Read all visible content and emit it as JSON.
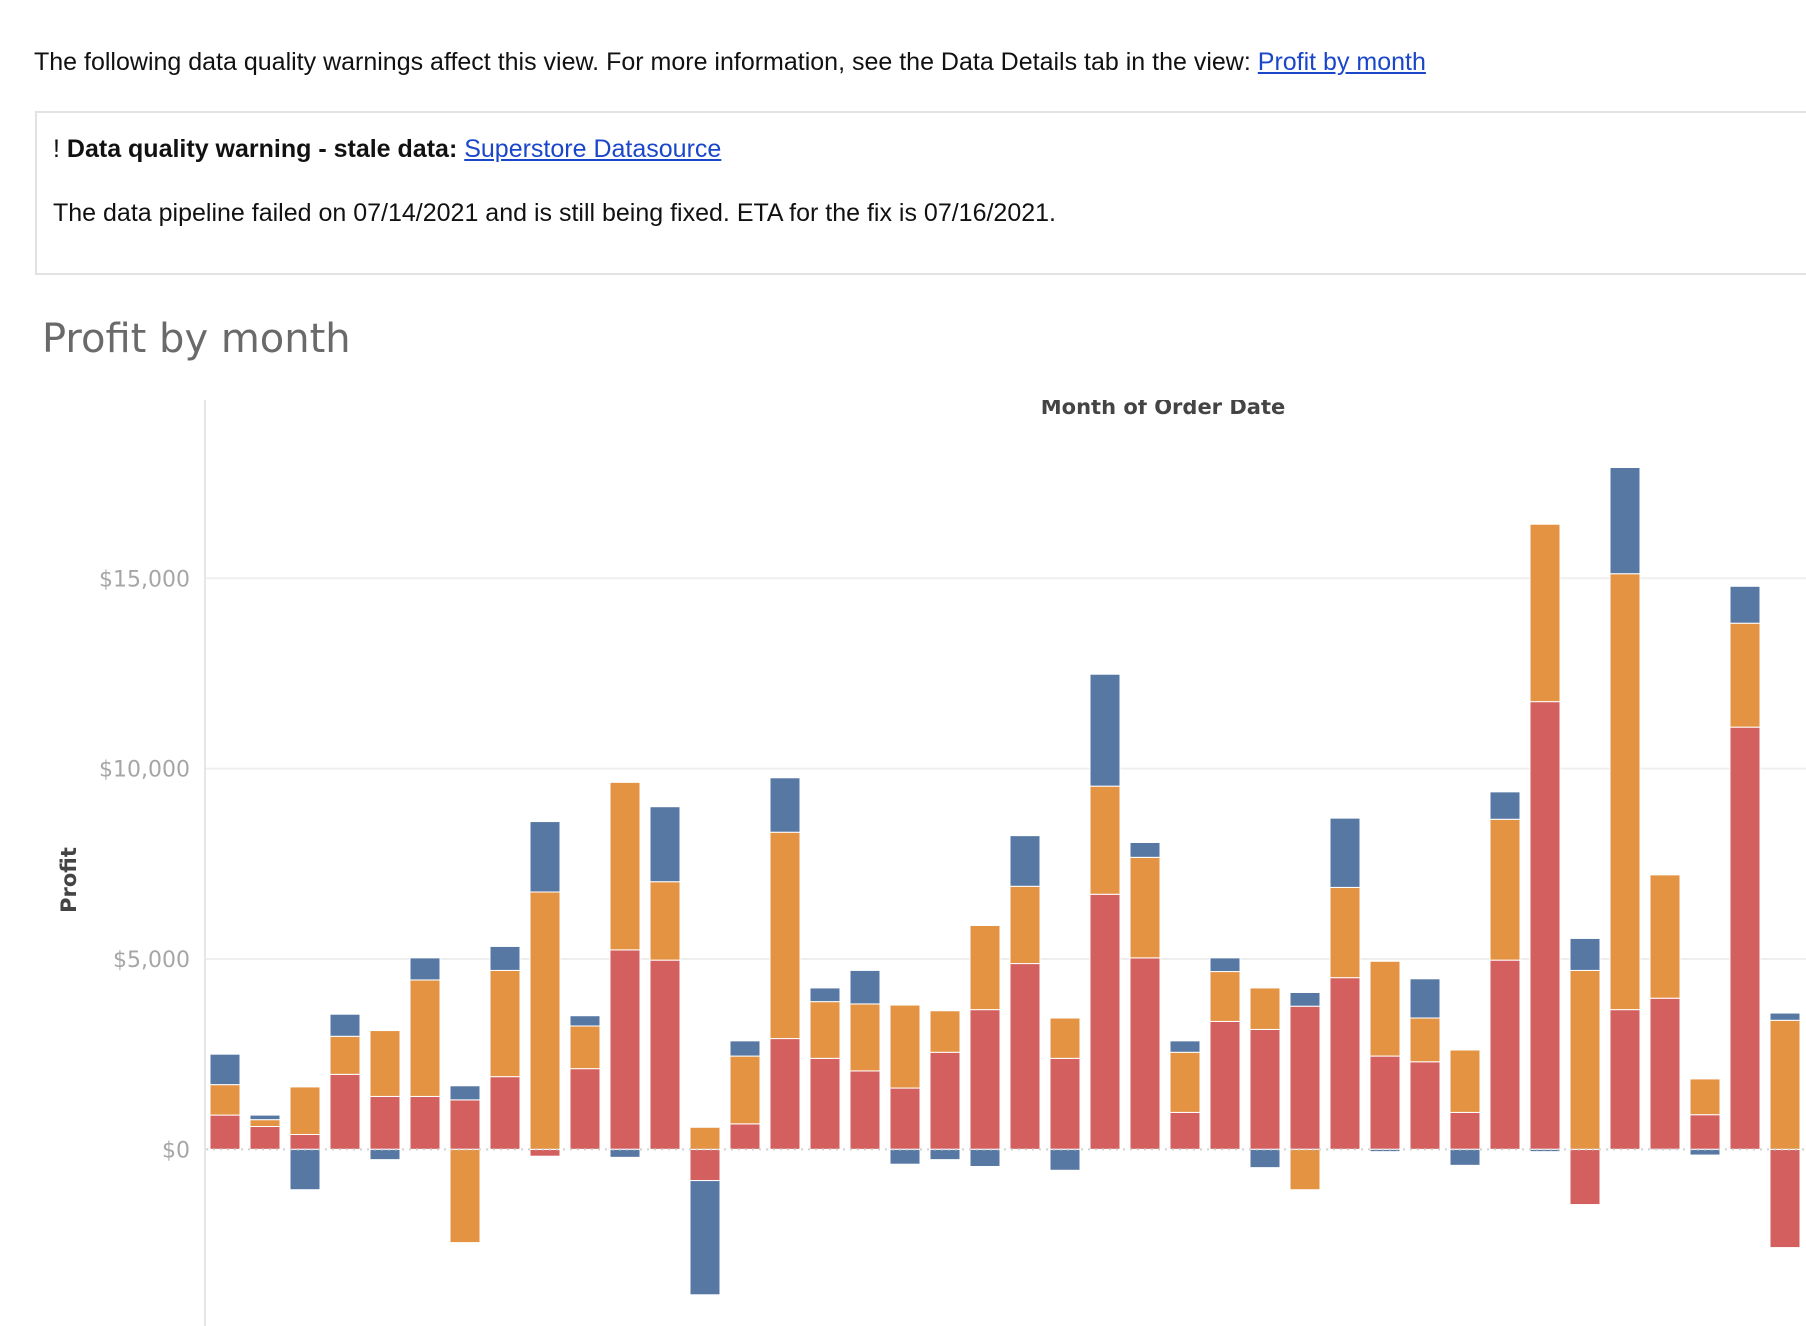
{
  "intro": {
    "text": "The following data quality warnings affect this view. For more information, see the Data Details tab in the view: ",
    "link": "Profit by month"
  },
  "warning": {
    "prefix": "! ",
    "title": "Data quality warning - stale data: ",
    "link": "Superstore Datasource",
    "message": "The data pipeline failed on 07/14/2021 and is still being fixed. ETA for the fix is 07/16/2021."
  },
  "colors": {
    "red": "#d3605e",
    "orange": "#e49343",
    "blue": "#5878a4",
    "grid": "#efefef"
  },
  "chart_data": {
    "type": "bar",
    "stacked": true,
    "title": "Profit by month",
    "xlabel": "Month of Order Date",
    "ylabel": "Profit",
    "ylim": [
      -4640,
      19000
    ],
    "yticks": [
      0,
      5000,
      10000,
      15000
    ],
    "ytick_labels": [
      "$0",
      "$5,000",
      "$10,000",
      "$15,000"
    ],
    "grid": true,
    "series": [
      {
        "color": "red",
        "values": [
          900,
          600,
          390,
          1970,
          1390,
          1390,
          1300,
          1910,
          -180,
          2120,
          5240,
          4970,
          -820,
          670,
          2910,
          2390,
          2060,
          1610,
          2550,
          3670,
          4880,
          2390,
          6700,
          5030,
          970,
          3360,
          3150,
          3760,
          4510,
          2450,
          2300,
          970,
          4970,
          11760,
          -1450,
          3670,
          3970,
          910,
          11090,
          -2580
        ]
      },
      {
        "color": "orange",
        "values": [
          800,
          180,
          1250,
          1000,
          1730,
          3060,
          -2450,
          2790,
          6760,
          1120,
          4400,
          2060,
          580,
          1780,
          5420,
          1490,
          1760,
          2180,
          1090,
          2210,
          2030,
          1060,
          2840,
          2640,
          1580,
          1310,
          1090,
          -1060,
          2370,
          2490,
          1150,
          1640,
          3700,
          4660,
          4700,
          11450,
          3240,
          940,
          2730,
          3390
        ]
      },
      {
        "color": "blue",
        "values": [
          800,
          120,
          -1060,
          580,
          -270,
          580,
          370,
          630,
          1850,
          270,
          -210,
          1970,
          -3000,
          400,
          1430,
          360,
          880,
          -390,
          -270,
          -450,
          1330,
          -550,
          2940,
          390,
          300,
          360,
          -480,
          360,
          1820,
          -60,
          1030,
          -420,
          720,
          -60,
          840,
          2790,
          -30,
          -150,
          970,
          190
        ]
      }
    ]
  }
}
